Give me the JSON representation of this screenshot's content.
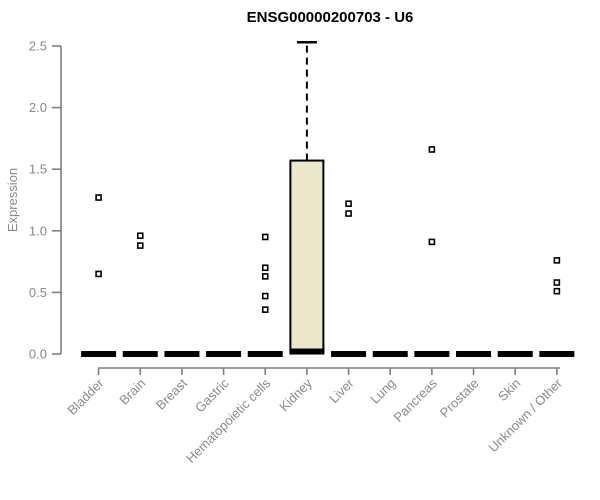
{
  "chart_data": {
    "type": "boxplot",
    "title": "ENSG00000200703 - U6",
    "ylabel": "Expression",
    "xlabel": "",
    "ylim": [
      0,
      2.5
    ],
    "yticks": [
      0.0,
      0.5,
      1.0,
      1.5,
      2.0,
      2.5
    ],
    "grid": "off",
    "legend": "none",
    "colors": {
      "box_fill": "#ebe7cb",
      "box_stroke": "#000000",
      "axis_line": "#7f7f7f",
      "axis_text": "#8a8a8a",
      "point_stroke": "#000000",
      "point_fill": "#ffffff"
    },
    "categories": [
      "Bladder",
      "Brain",
      "Breast",
      "Gastric",
      "Hematopoietic cells",
      "Kidney",
      "Liver",
      "Lung",
      "Pancreas",
      "Prostate",
      "Skin",
      "Unknown / Other"
    ],
    "series": [
      {
        "name": "Bladder",
        "q1": 0,
        "median": 0,
        "q3": 0,
        "whisker_low": 0,
        "whisker_high": 0,
        "points": [
          1.27,
          0.65
        ]
      },
      {
        "name": "Brain",
        "q1": 0,
        "median": 0,
        "q3": 0,
        "whisker_low": 0,
        "whisker_high": 0,
        "points": [
          0.96,
          0.88
        ]
      },
      {
        "name": "Breast",
        "q1": 0,
        "median": 0,
        "q3": 0,
        "whisker_low": 0,
        "whisker_high": 0,
        "points": []
      },
      {
        "name": "Gastric",
        "q1": 0,
        "median": 0,
        "q3": 0,
        "whisker_low": 0,
        "whisker_high": 0,
        "points": []
      },
      {
        "name": "Hematopoietic cells",
        "q1": 0,
        "median": 0,
        "q3": 0,
        "whisker_low": 0,
        "whisker_high": 0,
        "points": [
          0.95,
          0.7,
          0.63,
          0.47,
          0.36
        ]
      },
      {
        "name": "Kidney",
        "q1": 0,
        "median": 0.02,
        "q3": 1.57,
        "whisker_low": 0,
        "whisker_high": 2.53,
        "points": []
      },
      {
        "name": "Liver",
        "q1": 0,
        "median": 0,
        "q3": 0,
        "whisker_low": 0,
        "whisker_high": 0,
        "points": [
          1.22,
          1.14
        ]
      },
      {
        "name": "Lung",
        "q1": 0,
        "median": 0,
        "q3": 0,
        "whisker_low": 0,
        "whisker_high": 0,
        "points": []
      },
      {
        "name": "Pancreas",
        "q1": 0,
        "median": 0,
        "q3": 0,
        "whisker_low": 0,
        "whisker_high": 0,
        "points": [
          1.66,
          0.91
        ]
      },
      {
        "name": "Prostate",
        "q1": 0,
        "median": 0,
        "q3": 0,
        "whisker_low": 0,
        "whisker_high": 0,
        "points": []
      },
      {
        "name": "Skin",
        "q1": 0,
        "median": 0,
        "q3": 0,
        "whisker_low": 0,
        "whisker_high": 0,
        "points": []
      },
      {
        "name": "Unknown / Other",
        "q1": 0,
        "median": 0,
        "q3": 0,
        "whisker_low": 0,
        "whisker_high": 0,
        "points": [
          0.76,
          0.58,
          0.51
        ]
      }
    ]
  }
}
